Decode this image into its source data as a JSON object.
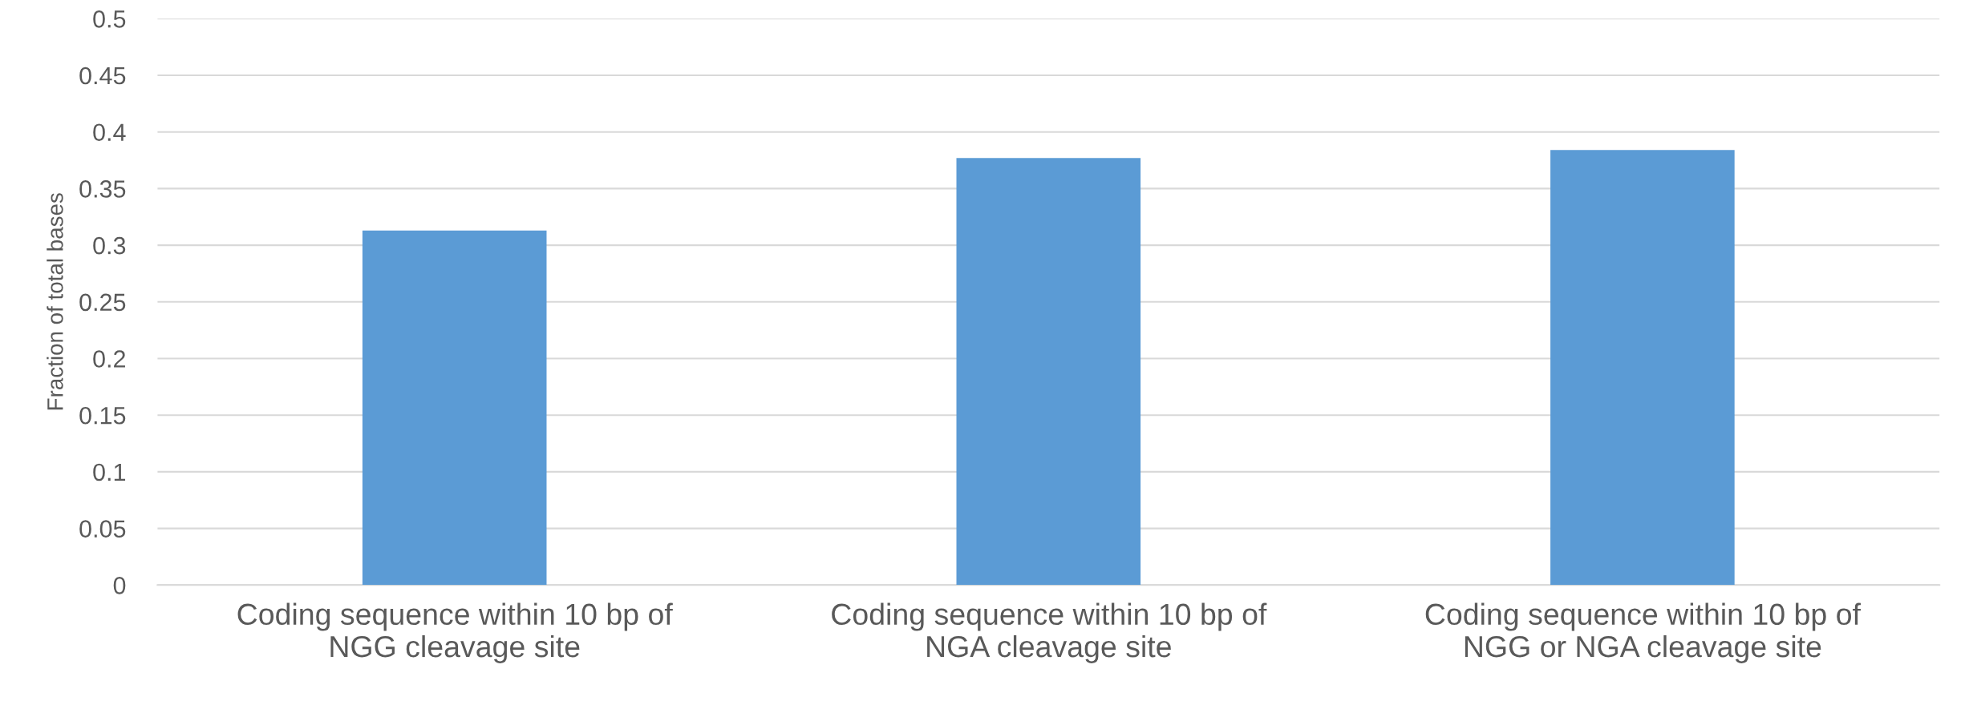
{
  "chart_data": {
    "type": "bar",
    "ylabel": "Fraction of total bases",
    "categories": [
      "Coding sequence within 10 bp of\nNGG cleavage site",
      "Coding sequence within 10 bp of\nNGA cleavage site",
      "Coding sequence within 10 bp of\nNGG or NGA cleavage site"
    ],
    "values": [
      0.313,
      0.377,
      0.384
    ],
    "color": "#5b9bd5",
    "ylim": [
      0,
      0.5
    ],
    "yticks": [
      0,
      0.05,
      0.1,
      0.15,
      0.2,
      0.25,
      0.3,
      0.35,
      0.4,
      0.45,
      0.5
    ],
    "grid": "y"
  }
}
